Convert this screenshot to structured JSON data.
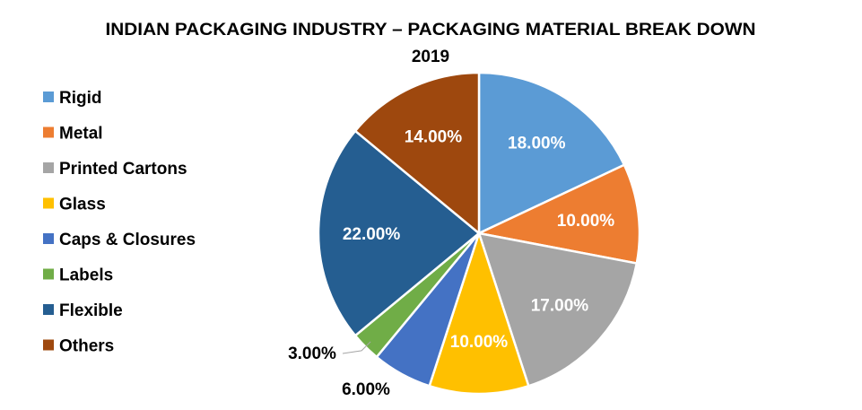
{
  "chart_data": {
    "type": "pie",
    "title": "INDIAN PACKAGING INDUSTRY – PACKAGING MATERIAL BREAK DOWN",
    "subtitle": "2019",
    "legend_position": "left",
    "categories": [
      "Rigid",
      "Metal",
      "Printed Cartons",
      "Glass",
      "Caps & Closures",
      "Labels",
      "Flexible",
      "Others"
    ],
    "values": [
      18,
      10,
      17,
      10,
      6,
      3,
      22,
      14
    ],
    "data_labels": [
      "18.00%",
      "10.00%",
      "17.00%",
      "10.00%",
      "6.00%",
      "3.00%",
      "22.00%",
      "14.00%"
    ],
    "colors": [
      "#5B9BD5",
      "#ED7D31",
      "#A5A5A5",
      "#FFC000",
      "#4472C4",
      "#70AD47",
      "#255E91",
      "#9E480E"
    ]
  }
}
